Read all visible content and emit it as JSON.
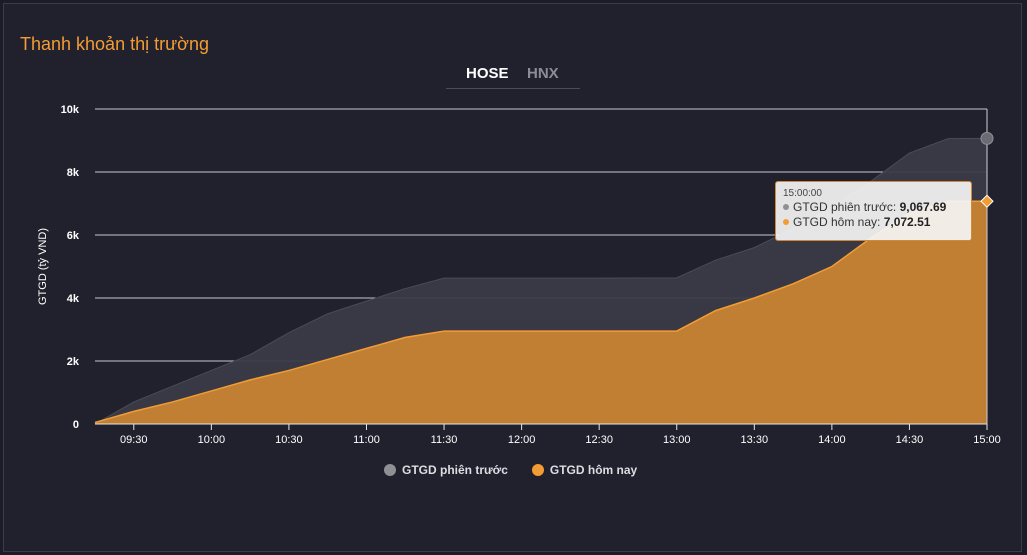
{
  "title": "Thanh khoản thị trường",
  "tabs": [
    {
      "label": "HOSE",
      "active": true
    },
    {
      "label": "HNX",
      "active": false
    }
  ],
  "tooltip": {
    "time": "15:00:00",
    "rows": [
      {
        "label": "GTGD phiên trước: ",
        "value": "9,067.69",
        "color": "#8f9096"
      },
      {
        "label": "GTGD hôm nay: ",
        "value": "7,072.51",
        "color": "#f39c34"
      }
    ]
  },
  "legend": [
    {
      "label": "GTGD phiên trước",
      "color": "#8f9096"
    },
    {
      "label": "GTGD hôm nay",
      "color": "#f39c34"
    }
  ],
  "chart_data": {
    "type": "area",
    "ylabel": "GTGD (tỷ VND)",
    "xlabel": "",
    "ylim": [
      0,
      10000
    ],
    "yticks": [
      0,
      2000,
      4000,
      6000,
      8000,
      10000
    ],
    "ytick_labels": [
      "0",
      "2k",
      "4k",
      "6k",
      "8k",
      "10k"
    ],
    "xlim": [
      "09:15",
      "15:00"
    ],
    "xtick_labels": [
      "09:30",
      "10:00",
      "10:30",
      "11:00",
      "11:30",
      "12:00",
      "12:30",
      "13:00",
      "13:30",
      "14:00",
      "14:30",
      "15:00"
    ],
    "grid": true,
    "legend_position": "bottom",
    "series": [
      {
        "name": "GTGD phiên trước",
        "color": "#8f9096",
        "points": [
          [
            "09:15",
            0
          ],
          [
            "09:30",
            700
          ],
          [
            "09:45",
            1200
          ],
          [
            "10:00",
            1700
          ],
          [
            "10:15",
            2200
          ],
          [
            "10:30",
            2900
          ],
          [
            "10:45",
            3500
          ],
          [
            "11:00",
            3900
          ],
          [
            "11:15",
            4300
          ],
          [
            "11:30",
            4630
          ],
          [
            "12:00",
            4630
          ],
          [
            "12:30",
            4630
          ],
          [
            "13:00",
            4640
          ],
          [
            "13:15",
            5200
          ],
          [
            "13:30",
            5600
          ],
          [
            "13:45",
            6200
          ],
          [
            "14:00",
            6900
          ],
          [
            "14:15",
            7700
          ],
          [
            "14:30",
            8600
          ],
          [
            "14:45",
            9060
          ],
          [
            "15:00",
            9067.69
          ]
        ]
      },
      {
        "name": "GTGD hôm nay",
        "color": "#f39c34",
        "points": [
          [
            "09:15",
            50
          ],
          [
            "09:30",
            400
          ],
          [
            "09:45",
            700
          ],
          [
            "10:00",
            1050
          ],
          [
            "10:15",
            1400
          ],
          [
            "10:30",
            1700
          ],
          [
            "10:45",
            2050
          ],
          [
            "11:00",
            2400
          ],
          [
            "11:15",
            2750
          ],
          [
            "11:30",
            2950
          ],
          [
            "12:00",
            2950
          ],
          [
            "12:30",
            2950
          ],
          [
            "13:00",
            2950
          ],
          [
            "13:15",
            3600
          ],
          [
            "13:30",
            4000
          ],
          [
            "13:45",
            4450
          ],
          [
            "14:00",
            5000
          ],
          [
            "14:15",
            5900
          ],
          [
            "14:30",
            6700
          ],
          [
            "14:45",
            7070
          ],
          [
            "15:00",
            7072.51
          ]
        ]
      }
    ]
  }
}
